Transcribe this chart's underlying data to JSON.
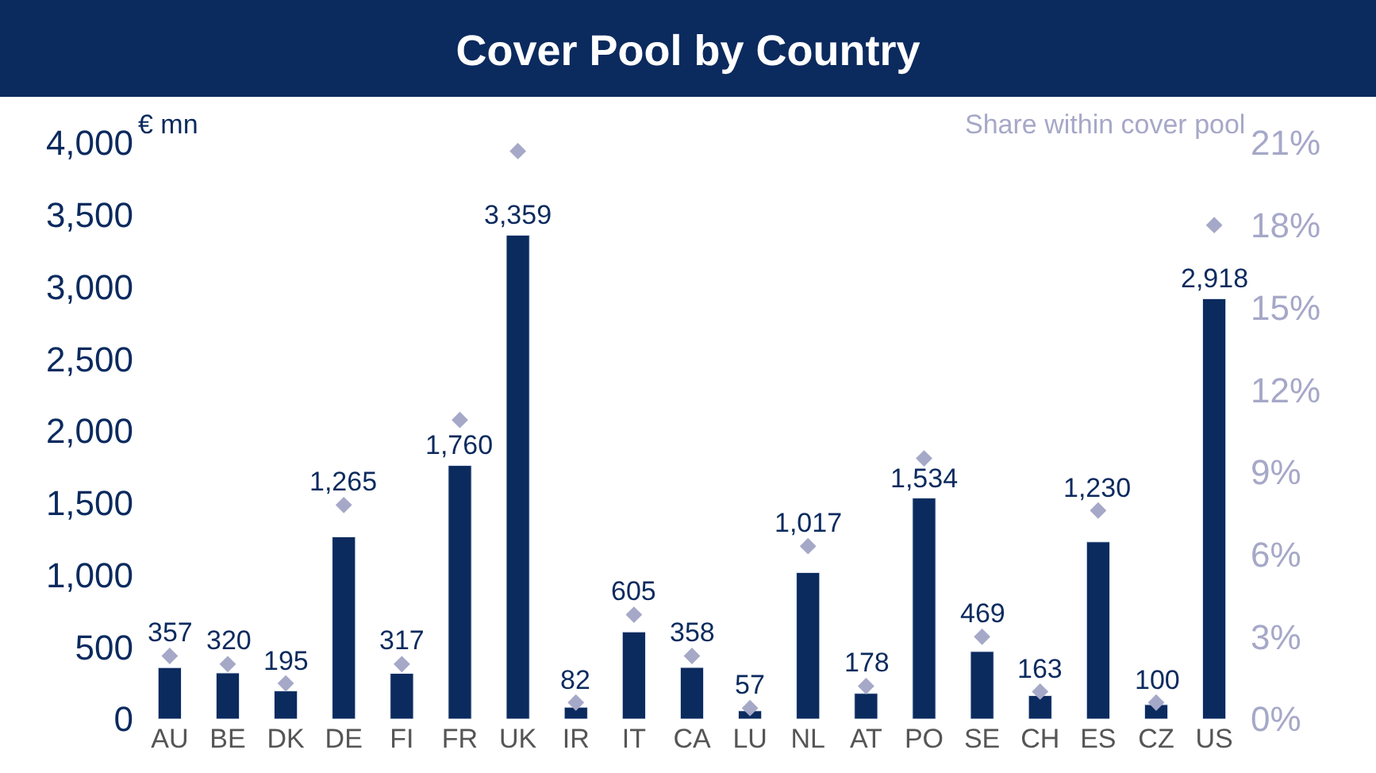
{
  "chart_data": {
    "type": "bar",
    "title": "Cover Pool by Country",
    "categories": [
      "AU",
      "BE",
      "DK",
      "DE",
      "FI",
      "FR",
      "UK",
      "IR",
      "IT",
      "CA",
      "LU",
      "NL",
      "AT",
      "PO",
      "SE",
      "CH",
      "ES",
      "CZ",
      "US"
    ],
    "series": [
      {
        "color": "#0b2a5e",
        "values": [
          357,
          320,
          195,
          1265,
          317,
          1760,
          3359,
          82,
          605,
          358,
          57,
          1017,
          178,
          1534,
          469,
          163,
          1230,
          100,
          2918
        ],
        "value_labels": [
          "357",
          "320",
          "195",
          "1,265",
          "317",
          "1,760",
          "3,359",
          "82",
          "605",
          "358",
          "57",
          "1,017",
          "178",
          "1,534",
          "469",
          "163",
          "1,230",
          "100",
          "2,918"
        ]
      },
      {
        "type": "scatter",
        "axis": "y2",
        "marker": "diamond",
        "color": "#a6a8c8",
        "values": [
          2.3,
          2.0,
          1.3,
          7.8,
          2.0,
          10.9,
          20.7,
          0.6,
          3.8,
          2.3,
          0.4,
          6.3,
          1.2,
          9.5,
          3.0,
          1.0,
          7.6,
          0.6,
          18.0
        ]
      }
    ],
    "ylim": [
      0,
      4000
    ],
    "yticks": [
      0,
      500,
      {
        "value": 1000,
        "label": "1,000"
      },
      {
        "value": 1500,
        "label": "1,500"
      },
      {
        "value": 2000,
        "label": "2,000"
      },
      {
        "value": 2500,
        "label": "2,500"
      },
      {
        "value": 3000,
        "label": "3,000"
      },
      {
        "value": 3500,
        "label": "3,500"
      },
      {
        "value": 4000,
        "label": "4,000"
      }
    ],
    "y2lim": [
      0,
      21
    ],
    "y2ticks": [
      {
        "value": 0,
        "label": "0%"
      },
      {
        "value": 3,
        "label": "3%"
      },
      {
        "value": 6,
        "label": "6%"
      },
      {
        "value": 9,
        "label": "9%"
      },
      {
        "value": 12,
        "label": "12%"
      },
      {
        "value": 15,
        "label": "15%"
      },
      {
        "value": 18,
        "label": "18%"
      },
      {
        "value": 21,
        "label": "21%"
      }
    ],
    "ylabel": "€ mn",
    "y2label": "Share within cover pool"
  }
}
